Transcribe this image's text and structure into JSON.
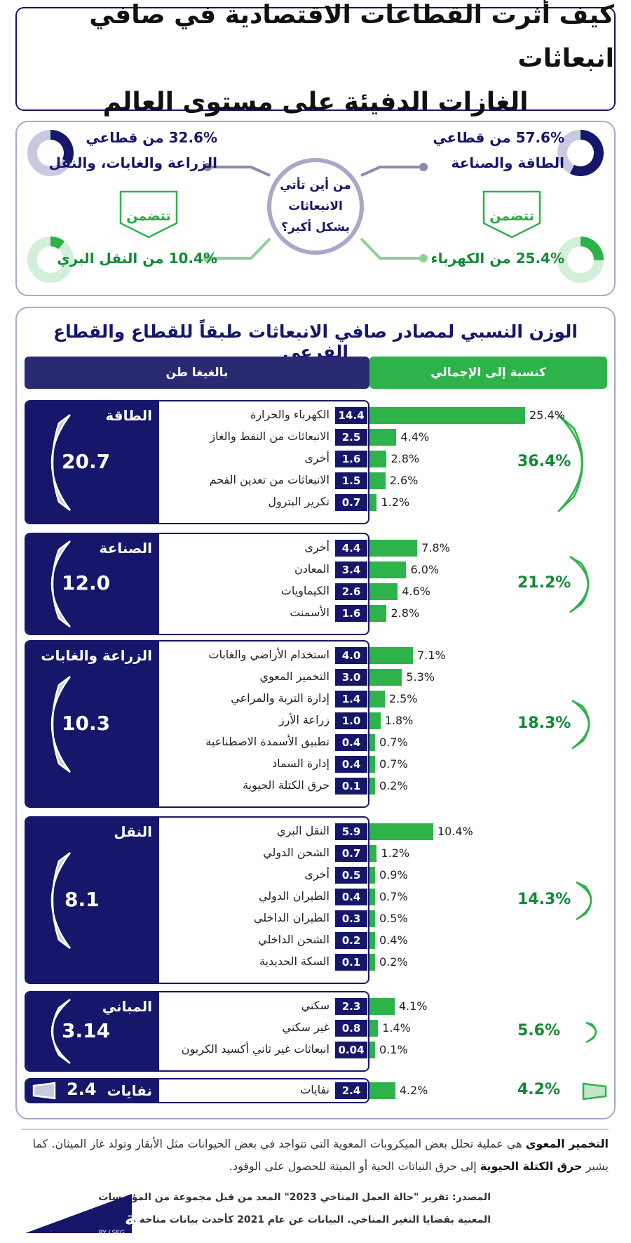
{
  "title": {
    "line1": "كيف أثرت القطاعات الاقتصادية في صافي انبعاثات",
    "line2": "الغازات الدفيئة على مستوى العالم"
  },
  "top": {
    "center": {
      "line1": "من أين تأتي",
      "line2": "الانبعاثات",
      "line3": "بشكل أكبر؟"
    },
    "stat_energy": {
      "line1": "57.6% من قطاعي",
      "line2": "الطاقة والصناعة",
      "value": 57.6
    },
    "stat_agri": {
      "line1": "32.6% من قطاعي",
      "line2": "الزراعة والغابات، والنقل",
      "value": 32.6
    },
    "includes_right": "تتضمن",
    "includes_left": "تتضمن",
    "stat_electricity": {
      "label": "25.4% من الكهرباء",
      "value": 25.4
    },
    "stat_road": {
      "label": "10.4% من النقل البري",
      "value": 10.4
    },
    "colors": {
      "navy": "#16166b",
      "lavender": "#c9c9e0",
      "green": "#2db34a",
      "light_green": "#d4efd9"
    }
  },
  "main": {
    "title": "الوزن النسبي لمصادر صافي الانبعاثات طبقاً للقطاع والقطاع الفرعي",
    "header_share": "كنسبة إلى الإجمالي",
    "header_gt": "بالغيغا طن"
  },
  "chart_data": {
    "type": "bar",
    "unit": "gigaton",
    "sectors": [
      {
        "name": "الطاقة",
        "total": "20.7",
        "share": "36.4%",
        "share_value": 36.4,
        "items": [
          {
            "label": "الكهرباء والحرارة",
            "value": "14.4",
            "pct": "25.4%",
            "pct_value": 25.4
          },
          {
            "label": "الانبعاثات من النفط والغاز",
            "value": "2.5",
            "pct": "4.4%",
            "pct_value": 4.4
          },
          {
            "label": "أخرى",
            "value": "1.6",
            "pct": "2.8%",
            "pct_value": 2.8
          },
          {
            "label": "الانبعاثات من تعدين الفحم",
            "value": "1.5",
            "pct": "2.6%",
            "pct_value": 2.6
          },
          {
            "label": "تكرير البترول",
            "value": "0.7",
            "pct": "1.2%",
            "pct_value": 1.2
          }
        ]
      },
      {
        "name": "الصناعة",
        "total": "12.0",
        "share": "21.2%",
        "share_value": 21.2,
        "items": [
          {
            "label": "أخرى",
            "value": "4.4",
            "pct": "7.8%",
            "pct_value": 7.8
          },
          {
            "label": "المعادن",
            "value": "3.4",
            "pct": "6.0%",
            "pct_value": 6.0
          },
          {
            "label": "الكيماويات",
            "value": "2.6",
            "pct": "4.6%",
            "pct_value": 4.6
          },
          {
            "label": "الأسمنت",
            "value": "1.6",
            "pct": "2.8%",
            "pct_value": 2.8
          }
        ]
      },
      {
        "name": "الزراعة والغابات",
        "total": "10.3",
        "share": "18.3%",
        "share_value": 18.3,
        "items": [
          {
            "label": "استخدام الأراضي والغابات",
            "value": "4.0",
            "pct": "7.1%",
            "pct_value": 7.1
          },
          {
            "label": "التخمير المعوي",
            "value": "3.0",
            "pct": "5.3%",
            "pct_value": 5.3
          },
          {
            "label": "إدارة التربة والمراعي",
            "value": "1.4",
            "pct": "2.5%",
            "pct_value": 2.5
          },
          {
            "label": "زراعة الأرز",
            "value": "1.0",
            "pct": "1.8%",
            "pct_value": 1.8
          },
          {
            "label": "تطبيق الأسمدة الاصطناعية",
            "value": "0.4",
            "pct": "0.7%",
            "pct_value": 0.7
          },
          {
            "label": "إدارة السماد",
            "value": "0.4",
            "pct": "0.7%",
            "pct_value": 0.7
          },
          {
            "label": "حرق الكتلة الحيوية",
            "value": "0.1",
            "pct": "0.2%",
            "pct_value": 0.2
          }
        ]
      },
      {
        "name": "النقل",
        "total": "8.1",
        "share": "14.3%",
        "share_value": 14.3,
        "items": [
          {
            "label": "النقل البري",
            "value": "5.9",
            "pct": "10.4%",
            "pct_value": 10.4
          },
          {
            "label": "الشحن الدولي",
            "value": "0.7",
            "pct": "1.2%",
            "pct_value": 1.2
          },
          {
            "label": "أخرى",
            "value": "0.5",
            "pct": "0.9%",
            "pct_value": 0.9
          },
          {
            "label": "الطيران الدولي",
            "value": "0.4",
            "pct": "0.7%",
            "pct_value": 0.7
          },
          {
            "label": "الطيران الداخلي",
            "value": "0.3",
            "pct": "0.5%",
            "pct_value": 0.5
          },
          {
            "label": "الشحن الداخلي",
            "value": "0.2",
            "pct": "0.4%",
            "pct_value": 0.4
          },
          {
            "label": "السكة الحديدية",
            "value": "0.1",
            "pct": "0.2%",
            "pct_value": 0.2
          }
        ]
      },
      {
        "name": "المباني",
        "total": "3.14",
        "share": "5.6%",
        "share_value": 5.6,
        "items": [
          {
            "label": "سكني",
            "value": "2.3",
            "pct": "4.1%",
            "pct_value": 4.1
          },
          {
            "label": "غير سكني",
            "value": "0.8",
            "pct": "1.4%",
            "pct_value": 1.4
          },
          {
            "label": "انبعاثات غير ثاني أكسيد الكربون",
            "value": "0.04",
            "pct": "0.1%",
            "pct_value": 0.1
          }
        ]
      },
      {
        "name": "نفايات",
        "total": "2.4",
        "share": "4.2%",
        "share_value": 4.2,
        "items": [
          {
            "label": "نفايات",
            "value": "2.4",
            "pct": "4.2%",
            "pct_value": 4.2
          }
        ]
      }
    ]
  },
  "note": {
    "term1": "التخمير المعوي",
    "text1": " هي عملية تحلل بعض الميكروبات المعوية التي تتواجد في بعض الحيوانات مثل الأبقار وتولد غاز الميثان. كما يشير ",
    "term2": "حرق الكتلة الحيوية",
    "text2": " إلى حرق النباتات الحية أو الميتة للحصول على الوقود."
  },
  "source": {
    "line1": "المصدر: تقرير \"حالة العمل المناخي 2023\" المعد من قبل مجموعة من المؤسسات",
    "line2": "المعنية بقضايا التغير المناخي. البيانات عن عام 2021 كأحدث بيانات متاحة وفقاً للتقرير."
  },
  "logo": {
    "text": "زاوية",
    "sub": "BY LSEG"
  }
}
